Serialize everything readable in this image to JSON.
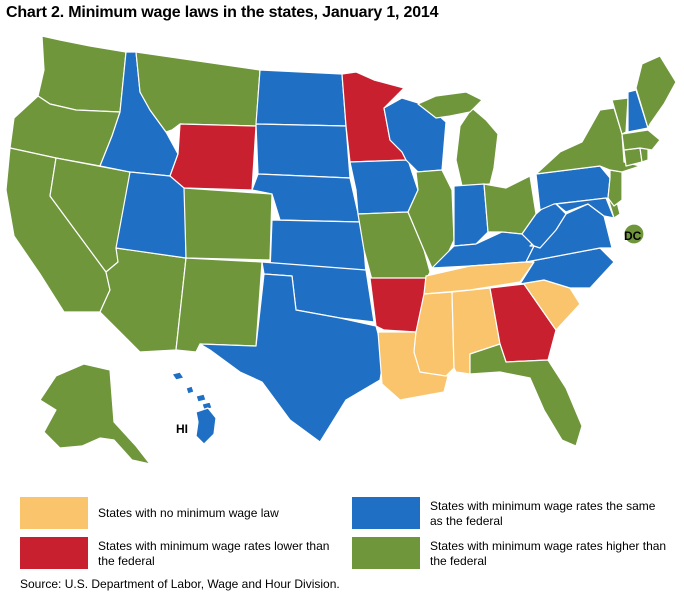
{
  "title": "Chart 2. Minimum wage laws in the states, January 1, 2014",
  "source": "Source: U.S. Department of Labor, Wage and Hour Division.",
  "colors": {
    "no_law": "#f9c46b",
    "lower": "#c8202f",
    "same": "#1f6fc4",
    "higher": "#6f963b",
    "border": "#ffffff"
  },
  "map_labels": {
    "hi": "HI",
    "dc": "DC"
  },
  "legend": [
    {
      "key": "no_law",
      "label": "States with no minimum wage law"
    },
    {
      "key": "same",
      "label": "States with minimum wage rates the same as the federal"
    },
    {
      "key": "lower",
      "label": "States with minimum wage rates lower than the federal"
    },
    {
      "key": "higher",
      "label": "States with minimum wage rates higher than the federal"
    }
  ],
  "states": {
    "WA": "higher",
    "OR": "higher",
    "CA": "higher",
    "NV": "higher",
    "AZ": "higher",
    "MT": "higher",
    "CO": "higher",
    "NM": "higher",
    "AK": "higher",
    "ID": "same",
    "UT": "same",
    "WY": "lower",
    "ND": "same",
    "SD": "same",
    "NE": "same",
    "KS": "same",
    "OK": "same",
    "TX": "same",
    "MN": "lower",
    "IA": "same",
    "MO": "higher",
    "AR": "lower",
    "LA": "no_law",
    "WI": "same",
    "IL": "higher",
    "MI": "higher",
    "IN": "same",
    "OH": "higher",
    "KY": "same",
    "TN": "no_law",
    "MS": "no_law",
    "AL": "no_law",
    "GA": "lower",
    "FL": "higher",
    "SC": "no_law",
    "NC": "same",
    "VA": "same",
    "WV": "same",
    "PA": "same",
    "NY": "higher",
    "VT": "higher",
    "NH": "same",
    "ME": "higher",
    "MA": "higher",
    "RI": "higher",
    "CT": "higher",
    "NJ": "higher",
    "DE": "higher",
    "MD": "same",
    "DC": "higher",
    "HI": "same"
  }
}
